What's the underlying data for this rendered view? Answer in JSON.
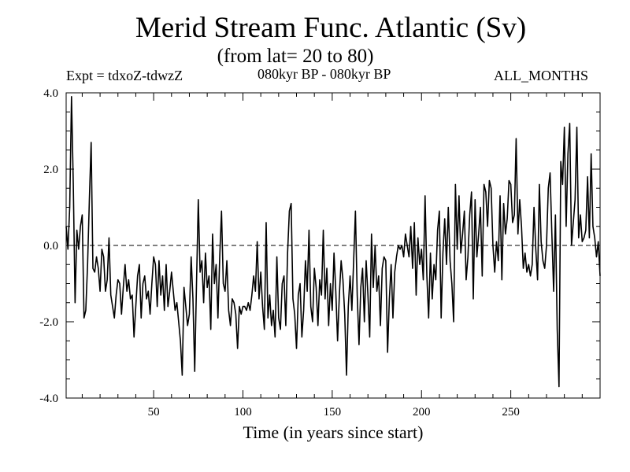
{
  "chart_data": {
    "type": "line",
    "title": "Merid Stream Func. Atlantic (Sv)",
    "subtitle": "(from lat= 20 to 80)",
    "left_label": "Expt = tdxoZ-tdwzZ",
    "center_label": "080kyr BP - 080kyr BP",
    "right_label": "ALL_MONTHS",
    "xlabel": "Time (in years since start)",
    "ylabel": "",
    "xlim": [
      1,
      300
    ],
    "ylim": [
      -4.0,
      4.0
    ],
    "x_ticks": [
      50,
      100,
      150,
      200,
      250
    ],
    "x_tick_labels": [
      "50",
      "100",
      "150",
      "200",
      "250"
    ],
    "y_ticks": [
      -4.0,
      -2.0,
      0.0,
      2.0,
      4.0
    ],
    "y_tick_labels": [
      "-4.0",
      "-2.0",
      "0.0",
      "2.0",
      "4.0"
    ],
    "reference_line": {
      "y": 0.0,
      "style": "dashed"
    },
    "series": [
      {
        "name": "Merid Stream Func. Atlantic",
        "x_start": 1,
        "x_step": 1,
        "values": [
          0.5,
          -0.1,
          1.0,
          3.9,
          1.6,
          -1.5,
          0.4,
          -0.1,
          0.5,
          0.8,
          -1.9,
          -1.7,
          -0.5,
          1.2,
          2.7,
          -0.6,
          -0.7,
          -0.3,
          -0.6,
          -1.2,
          -0.1,
          -0.3,
          -1.2,
          -0.9,
          0.2,
          -1.3,
          -1.6,
          -1.9,
          -1.3,
          -0.9,
          -1.0,
          -1.8,
          -1.1,
          -0.5,
          -1.2,
          -0.9,
          -1.4,
          -1.3,
          -2.4,
          -1.6,
          -0.8,
          -0.5,
          -1.9,
          -1.0,
          -0.8,
          -1.4,
          -1.2,
          -1.8,
          -1.0,
          -0.3,
          -0.5,
          -1.6,
          -0.4,
          -1.3,
          -0.8,
          -1.7,
          -0.5,
          -1.6,
          -1.2,
          -0.7,
          -1.2,
          -1.7,
          -1.5,
          -2.0,
          -2.5,
          -3.4,
          -1.1,
          -1.6,
          -2.1,
          -1.8,
          -0.3,
          -1.4,
          -3.3,
          -1.0,
          1.2,
          -0.7,
          -0.4,
          -1.5,
          -0.2,
          -1.1,
          -0.8,
          -2.2,
          0.3,
          -1.0,
          -0.5,
          -1.9,
          -0.3,
          0.9,
          -1.0,
          -1.2,
          -0.4,
          -1.7,
          -2.1,
          -1.4,
          -1.5,
          -1.8,
          -2.7,
          -1.6,
          -1.8,
          -1.6,
          -1.6,
          -1.7,
          -1.5,
          -1.7,
          -1.3,
          -0.8,
          -1.2,
          0.1,
          -1.4,
          -0.7,
          -1.6,
          -2.2,
          0.6,
          -1.9,
          -1.3,
          -2.1,
          -1.7,
          -2.4,
          -0.3,
          -1.9,
          -2.2,
          -1.0,
          -0.8,
          -2.1,
          -0.2,
          0.9,
          1.1,
          -1.4,
          -1.8,
          -2.7,
          -1.3,
          -1.0,
          -2.4,
          -1.7,
          -0.4,
          -1.2,
          0.4,
          -1.6,
          -2.0,
          -0.6,
          -1.1,
          -2.1,
          -0.9,
          -1.3,
          0.4,
          -1.4,
          -0.6,
          -2.1,
          -1.0,
          -1.7,
          -0.2,
          -1.2,
          -2.5,
          -1.3,
          -0.4,
          -0.9,
          -1.8,
          -3.4,
          -1.6,
          -0.8,
          -1.7,
          -0.4,
          0.9,
          -1.3,
          -2.6,
          -1.1,
          -0.6,
          -2.0,
          -0.4,
          -1.3,
          -2.4,
          0.3,
          -1.1,
          0.0,
          -1.2,
          -0.8,
          -2.1,
          -0.6,
          -0.3,
          -0.4,
          -2.8,
          -1.4,
          -0.5,
          -1.9,
          -0.7,
          -0.3,
          0.0,
          -0.1,
          0.0,
          -0.3,
          0.3,
          0.0,
          -0.3,
          0.5,
          -0.6,
          0.6,
          -1.3,
          0.2,
          -0.5,
          -0.1,
          -0.9,
          1.3,
          -0.8,
          -1.9,
          -0.2,
          -1.4,
          -0.5,
          -0.9,
          0.4,
          0.9,
          -1.9,
          -0.2,
          0.7,
          -0.5,
          1.0,
          -0.4,
          -1.0,
          -2.0,
          1.6,
          -0.1,
          1.3,
          -0.2,
          0.3,
          0.9,
          -0.9,
          -0.3,
          0.8,
          1.4,
          -1.4,
          1.2,
          -0.3,
          0.3,
          1.0,
          -0.8,
          1.6,
          1.4,
          0.5,
          1.7,
          1.5,
          0.0,
          -0.7,
          0.1,
          -0.4,
          1.3,
          -0.9,
          1.1,
          0.3,
          0.7,
          1.7,
          1.6,
          0.6,
          0.8,
          2.8,
          0.3,
          1.2,
          0.5,
          -0.6,
          -0.2,
          -0.7,
          -0.5,
          -0.8,
          -0.5,
          1.0,
          -0.1,
          -0.9,
          1.6,
          0.1,
          -0.4,
          -0.6,
          0.0,
          1.5,
          1.9,
          0.3,
          -1.2,
          0.8,
          -2.2,
          -3.7,
          2.2,
          1.6,
          3.1,
          0.5,
          2.4,
          3.2,
          0.0,
          0.6,
          1.2,
          3.1,
          0.2,
          0.8,
          0.1,
          0.2,
          0.4,
          1.8,
          0.2,
          2.4,
          0.5,
          0.2,
          -0.3,
          0.1,
          -0.8
        ]
      }
    ]
  }
}
